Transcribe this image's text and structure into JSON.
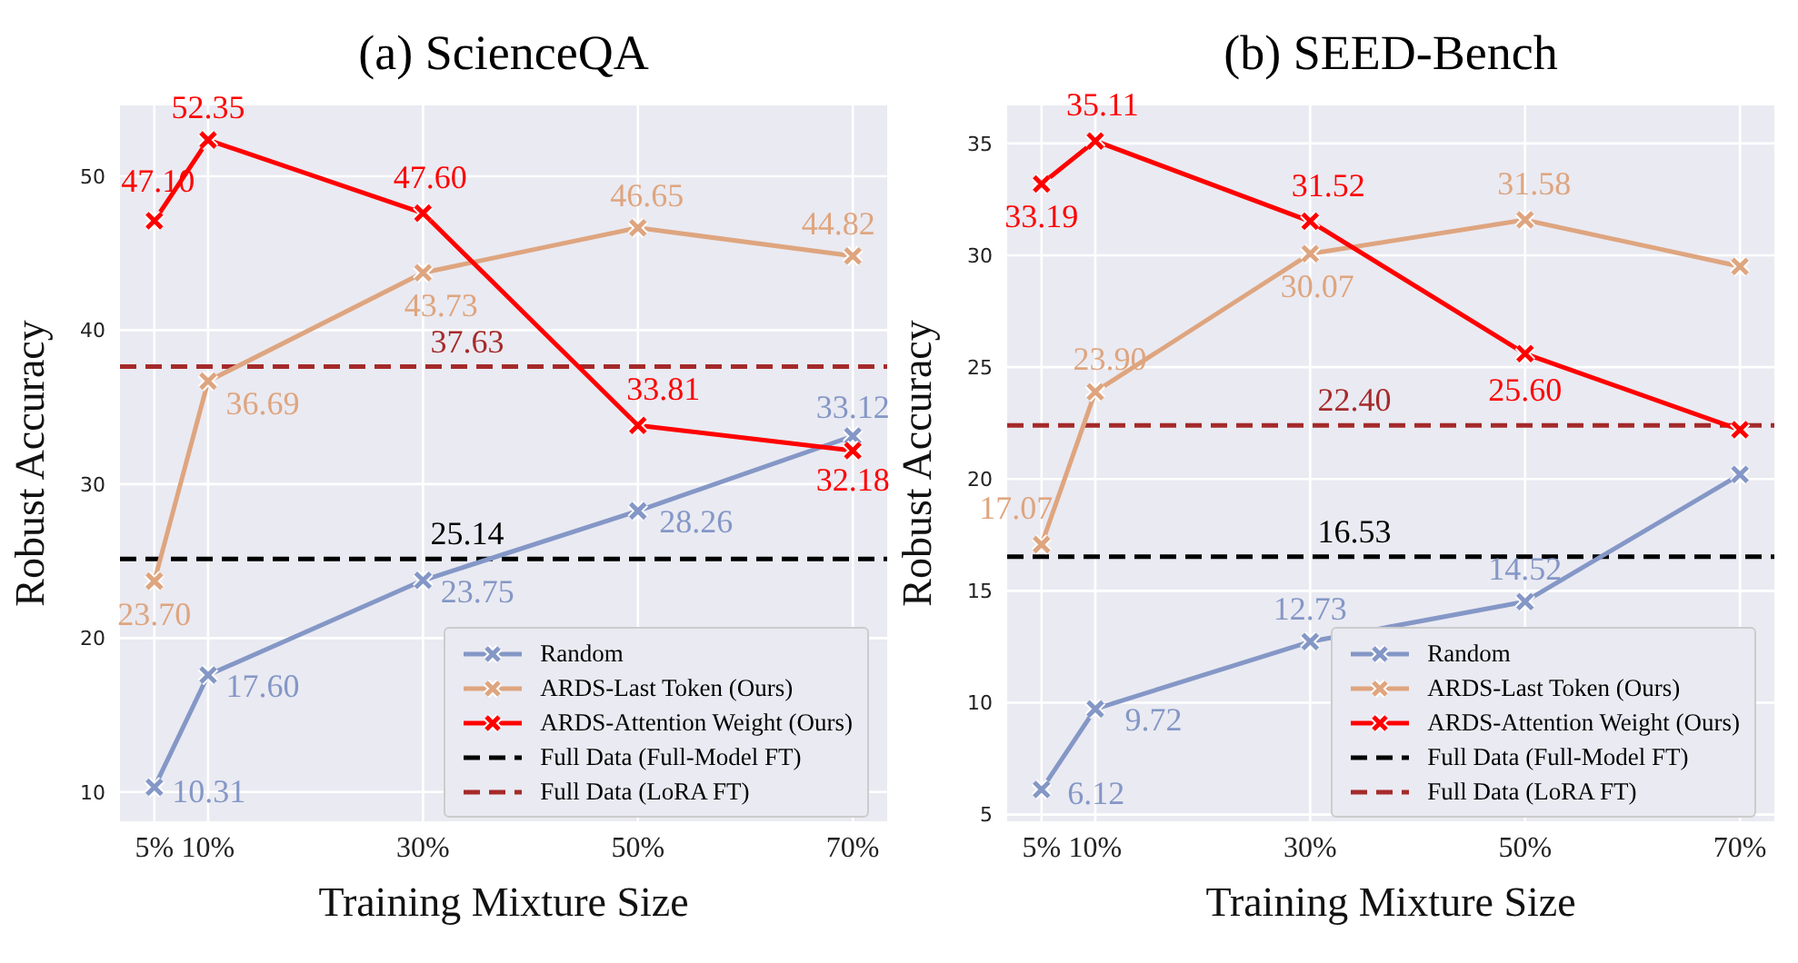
{
  "chart_data": [
    {
      "type": "line",
      "title": "(a) ScienceQA",
      "xlabel": "Training Mixture Size",
      "ylabel": "Robust Accuracy",
      "x": [
        5,
        10,
        30,
        50,
        70
      ],
      "xlim": [
        1.8,
        73.2
      ],
      "xticks": [
        {
          "value": 5,
          "label": "5%"
        },
        {
          "value": 10,
          "label": "10%"
        },
        {
          "value": 30,
          "label": "30%"
        },
        {
          "value": 50,
          "label": "50%"
        },
        {
          "value": 70,
          "label": "70%"
        }
      ],
      "ylim": [
        8.1,
        54.6
      ],
      "yticks": [
        10,
        20,
        30,
        40,
        50
      ],
      "grid": true,
      "legend": "bottom right",
      "marker": "cross",
      "line_style": "solid",
      "series": [
        {
          "name": "Random",
          "color": "#8497c6",
          "values": [
            10.31,
            17.6,
            23.75,
            28.26,
            33.12
          ],
          "value_labels": [
            "10.31",
            "17.60",
            "23.75",
            "28.26",
            "33.12"
          ]
        },
        {
          "name": "ARDS-Last Token (Ours)",
          "color": "#dea57f",
          "values": [
            23.7,
            36.69,
            43.73,
            46.65,
            44.82
          ],
          "value_labels": [
            "23.70",
            "36.69",
            "43.73",
            "46.65",
            "44.82"
          ]
        },
        {
          "name": "ARDS-Attention Weight (Ours)",
          "color": "#ff0000",
          "values": [
            47.1,
            52.35,
            47.6,
            33.81,
            32.18
          ],
          "value_labels": [
            "47.10",
            "52.35",
            "47.60",
            "33.81",
            "32.18"
          ]
        }
      ],
      "ref_lines": [
        {
          "axis": "y",
          "value": 25.14,
          "label": "Full Data (Full-Model FT)",
          "color": "#000000",
          "line_style": "dashed"
        },
        {
          "axis": "y",
          "value": 37.63,
          "label": "Full Data (LoRA FT)",
          "color": "#a52a2a",
          "line_style": "dashed"
        }
      ],
      "annotations": [
        {
          "text": "25.14",
          "y": 25.14
        },
        {
          "text": "37.63",
          "y": 37.63
        }
      ]
    },
    {
      "type": "line",
      "title": "(b) SEED-Bench",
      "xlabel": "Training Mixture Size",
      "ylabel": "Robust Accuracy",
      "x": [
        5,
        10,
        30,
        50,
        70
      ],
      "xlim": [
        1.8,
        73.2
      ],
      "xticks": [
        {
          "value": 5,
          "label": "5%"
        },
        {
          "value": 10,
          "label": "10%"
        },
        {
          "value": 30,
          "label": "30%"
        },
        {
          "value": 50,
          "label": "50%"
        },
        {
          "value": 70,
          "label": "70%"
        }
      ],
      "ylim": [
        4.7,
        36.7
      ],
      "yticks": [
        5,
        10,
        15,
        20,
        25,
        30,
        35
      ],
      "grid": true,
      "legend": "bottom right",
      "marker": "cross",
      "line_style": "solid",
      "series": [
        {
          "name": "Random",
          "color": "#8497c6",
          "values": [
            6.12,
            9.72,
            12.73,
            14.52,
            20.2
          ],
          "value_labels": [
            "6.12",
            "9.72",
            "12.73",
            "14.52",
            null
          ]
        },
        {
          "name": "ARDS-Last Token (Ours)",
          "color": "#dea57f",
          "values": [
            17.07,
            23.9,
            30.07,
            31.58,
            29.5
          ],
          "value_labels": [
            "17.07",
            "23.90",
            "30.07",
            "31.58",
            null
          ]
        },
        {
          "name": "ARDS-Attention Weight (Ours)",
          "color": "#ff0000",
          "values": [
            33.19,
            35.11,
            31.52,
            25.6,
            22.2
          ],
          "value_labels": [
            "33.19",
            "35.11",
            "31.52",
            "25.60",
            null
          ]
        }
      ],
      "ref_lines": [
        {
          "axis": "y",
          "value": 16.53,
          "label": "Full Data (Full-Model FT)",
          "color": "#000000",
          "line_style": "dashed"
        },
        {
          "axis": "y",
          "value": 22.4,
          "label": "Full Data (LoRA FT)",
          "color": "#a52a2a",
          "line_style": "dashed"
        }
      ],
      "annotations": [
        {
          "text": "16.53",
          "y": 16.53
        },
        {
          "text": "22.40",
          "y": 22.4
        }
      ]
    }
  ]
}
